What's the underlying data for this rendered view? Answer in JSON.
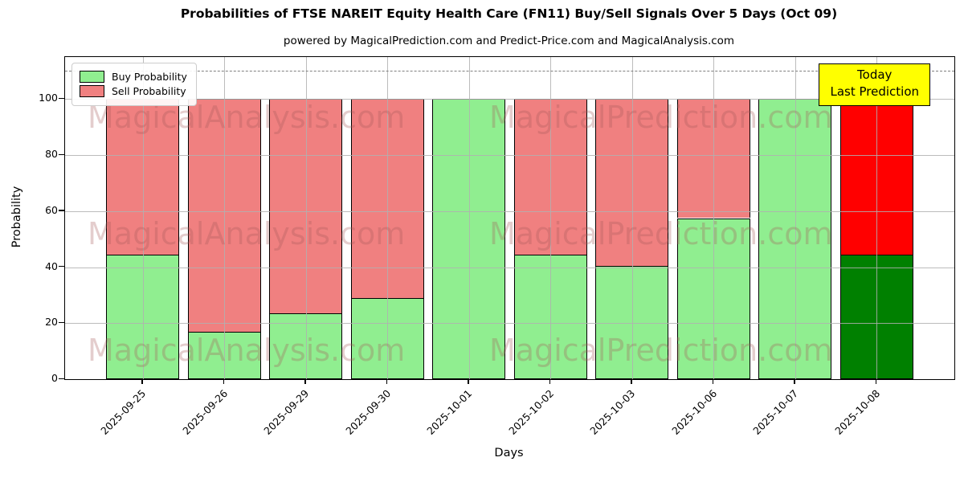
{
  "figure": {
    "title": "Probabilities of FTSE NAREIT Equity Health Care (FN11) Buy/Sell Signals Over 5 Days (Oct 09)",
    "subtitle": "powered by MagicalPrediction.com and Predict-Price.com and MagicalAnalysis.com"
  },
  "axes": {
    "ylabel": "Probability",
    "xlabel": "Days",
    "yticks": [
      0,
      20,
      40,
      60,
      80,
      100
    ],
    "ylim": [
      0,
      115
    ],
    "grid": true,
    "threshold_line": {
      "y": 110,
      "style": "dashed",
      "color": "#808080"
    }
  },
  "legend": {
    "position": "upper-left",
    "items": [
      {
        "label": "Buy Probability",
        "color": "#90ee90"
      },
      {
        "label": "Sell Probability",
        "color": "#f08080"
      }
    ]
  },
  "annotation_box": {
    "line1": "Today",
    "line2": "Last Prediction",
    "bg_color": "#ffff00",
    "border_color": "#000000"
  },
  "watermarks": {
    "left_text": "MagicalAnalysis.com",
    "right_text": "MagicalPrediction.com"
  },
  "chart_data": {
    "type": "bar",
    "stacked": true,
    "title": "Probabilities of FTSE NAREIT Equity Health Care (FN11) Buy/Sell Signals Over 5 Days (Oct 09)",
    "xlabel": "Days",
    "ylabel": "Probability",
    "ylim": [
      0,
      115
    ],
    "grid": true,
    "legend_position": "upper-left",
    "categories": [
      "2025-09-25",
      "2025-09-26",
      "2025-09-29",
      "2025-09-30",
      "2025-10-01",
      "2025-10-02",
      "2025-10-03",
      "2025-10-06",
      "2025-10-07",
      "2025-10-08"
    ],
    "series": [
      {
        "name": "Buy Probability",
        "color": "#90ee90",
        "final_bar_color": "#008000",
        "values": [
          44.5,
          17,
          23.5,
          29,
          100,
          44.5,
          40.5,
          57.5,
          100,
          44.5
        ]
      },
      {
        "name": "Sell Probability",
        "color": "#f08080",
        "final_bar_color": "#ff0000",
        "values": [
          55.5,
          83,
          76.5,
          71,
          0,
          55.5,
          59.5,
          42.5,
          0,
          55.5
        ]
      }
    ],
    "bar_edge_color": "#000000",
    "threshold_line_y": 110
  }
}
